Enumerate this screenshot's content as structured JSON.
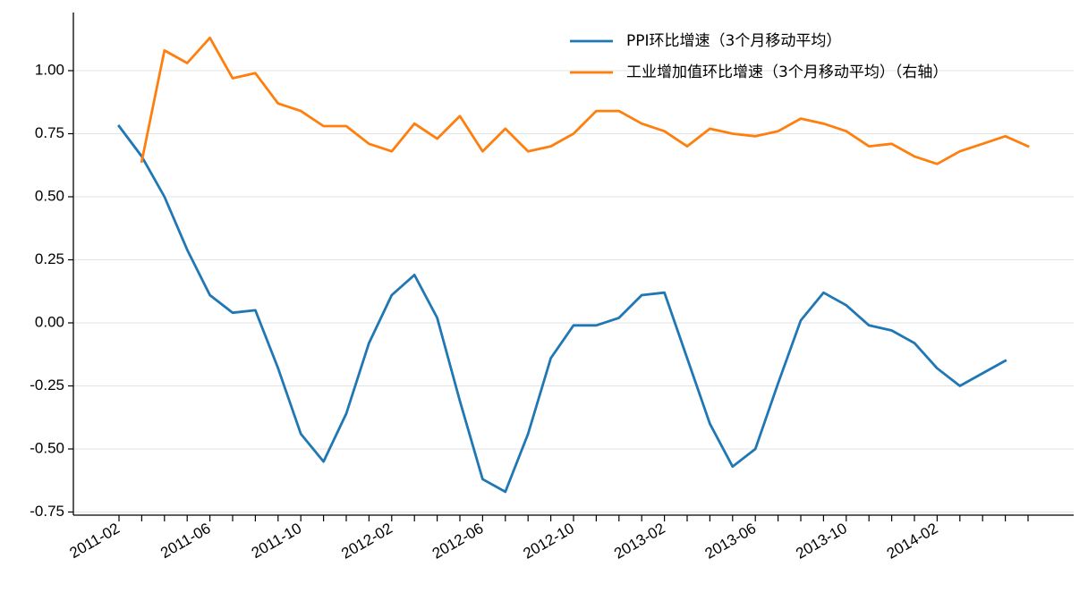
{
  "chart_data": {
    "type": "line",
    "title": "",
    "xlabel": "",
    "ylabel": "",
    "x": [
      "2011-02",
      "2011-03",
      "2011-04",
      "2011-05",
      "2011-06",
      "2011-07",
      "2011-08",
      "2011-09",
      "2011-10",
      "2011-11",
      "2011-12",
      "2012-01",
      "2012-02",
      "2012-03",
      "2012-04",
      "2012-05",
      "2012-06",
      "2012-07",
      "2012-08",
      "2012-09",
      "2012-10",
      "2012-11",
      "2012-12",
      "2013-01",
      "2013-02",
      "2013-03",
      "2013-04",
      "2013-05",
      "2013-06",
      "2013-07",
      "2013-08",
      "2013-09",
      "2013-10",
      "2013-11",
      "2013-12",
      "2014-01",
      "2014-02",
      "2014-03",
      "2014-04",
      "2014-05",
      "2014-06"
    ],
    "xtick_labels": [
      "2011-02",
      "2011-06",
      "2011-10",
      "2012-02",
      "2012-06",
      "2012-10",
      "2013-02",
      "2013-06",
      "2013-10",
      "2014-02"
    ],
    "ylim": [
      -0.75,
      1.25
    ],
    "yticks": [
      -0.75,
      -0.5,
      -0.25,
      0.0,
      0.25,
      0.5,
      0.75,
      1.0
    ],
    "ytick_labels": [
      "-0.75",
      "-0.50",
      "-0.25",
      "0.00",
      "0.25",
      "0.50",
      "0.75",
      "1.00"
    ],
    "grid": "horizontal",
    "legend_position": "top-right",
    "series": [
      {
        "name": "PPI环比增速（3个月移动平均）",
        "color": "#1f77b4",
        "values": [
          0.78,
          0.66,
          0.5,
          0.29,
          0.11,
          0.04,
          0.05,
          -0.18,
          -0.44,
          -0.55,
          -0.36,
          -0.08,
          0.11,
          0.19,
          0.02,
          -0.31,
          -0.62,
          -0.67,
          -0.44,
          -0.14,
          -0.01,
          -0.01,
          0.02,
          0.11,
          0.12,
          -0.14,
          -0.4,
          -0.57,
          -0.5,
          -0.24,
          0.01,
          0.12,
          0.07,
          -0.01,
          -0.03,
          -0.08,
          -0.18,
          -0.25,
          -0.2,
          -0.15,
          null
        ]
      },
      {
        "name": "工业增加值环比增速（3个月移动平均）（右轴）",
        "color": "#ff7f0e",
        "values": [
          null,
          0.64,
          1.08,
          1.03,
          1.13,
          0.97,
          0.99,
          0.87,
          0.84,
          0.78,
          0.78,
          0.71,
          0.68,
          0.79,
          0.73,
          0.82,
          0.68,
          0.77,
          0.68,
          0.7,
          0.75,
          0.84,
          0.84,
          0.79,
          0.76,
          0.7,
          0.77,
          0.75,
          0.74,
          0.76,
          0.81,
          0.79,
          0.76,
          0.7,
          0.71,
          0.66,
          0.63,
          0.68,
          0.71,
          0.74,
          0.7
        ]
      }
    ]
  }
}
